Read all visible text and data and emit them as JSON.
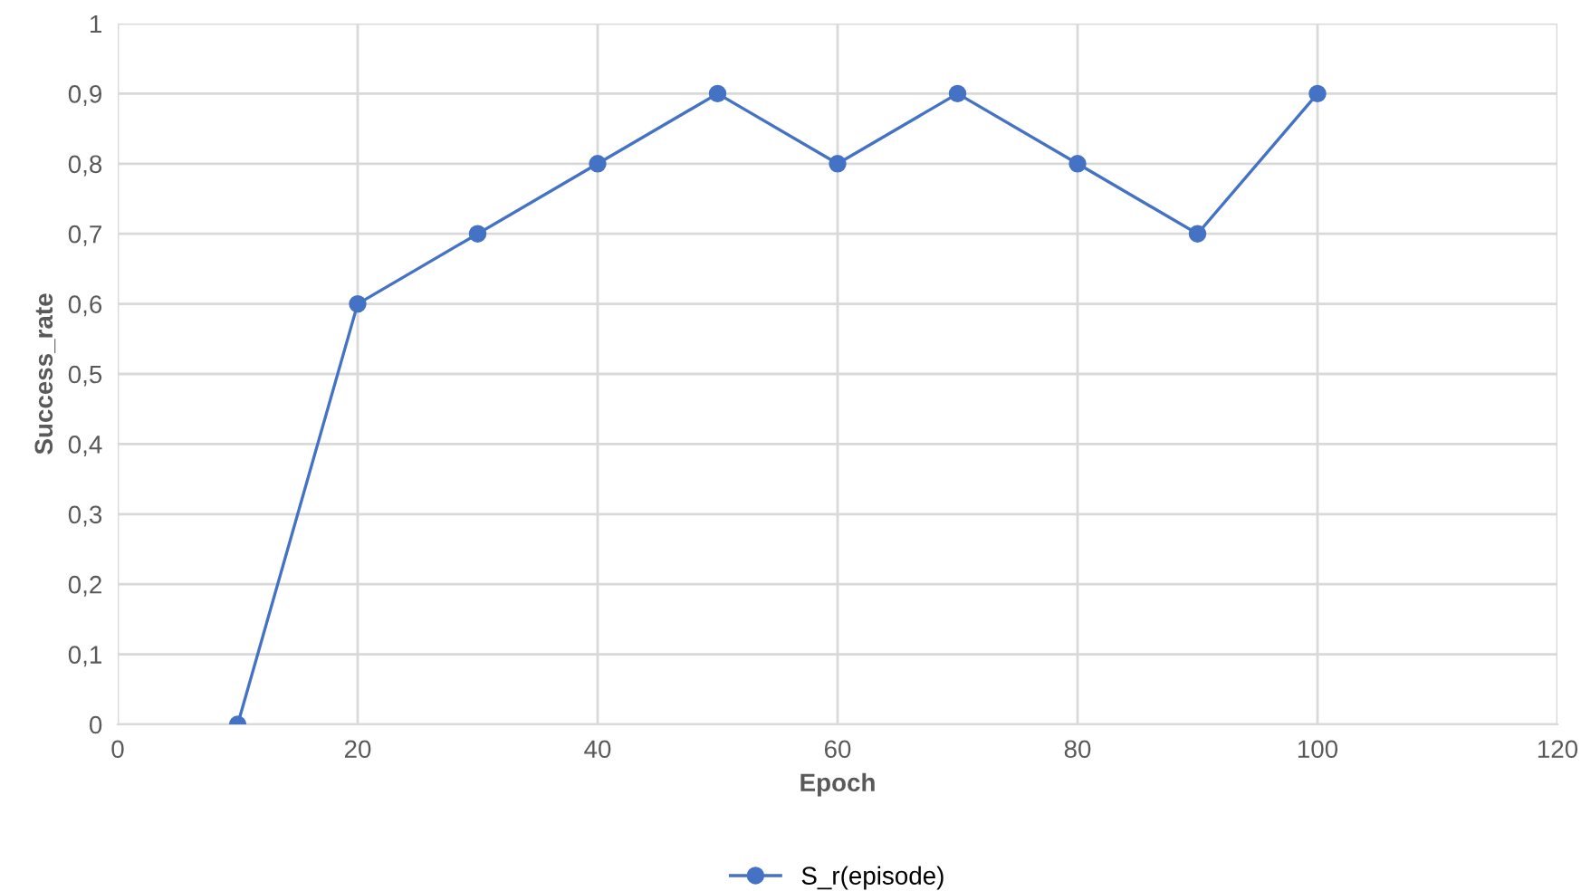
{
  "chart_data": {
    "type": "line",
    "xlabel": "Epoch",
    "ylabel": "Success_rate",
    "x": [
      10,
      20,
      30,
      40,
      50,
      60,
      70,
      80,
      90,
      100
    ],
    "series": [
      {
        "name": "S_r(episode)",
        "color": "#4472c4",
        "values": [
          0,
          0.6,
          0.7,
          0.8,
          0.9,
          0.8,
          0.9,
          0.8,
          0.7,
          0.9
        ]
      }
    ],
    "xlim": [
      0,
      120
    ],
    "xticks": [
      0,
      20,
      40,
      60,
      80,
      100,
      120
    ],
    "ylim": [
      0,
      1
    ],
    "yticks": [
      0,
      {
        "value": 0.1,
        "label": "0,1"
      },
      {
        "value": 0.2,
        "label": "0,2"
      },
      {
        "value": 0.3,
        "label": "0,3"
      },
      {
        "value": 0.4,
        "label": "0,4"
      },
      {
        "value": 0.5,
        "label": "0,5"
      },
      {
        "value": 0.6,
        "label": "0,6"
      },
      {
        "value": 0.7,
        "label": "0,7"
      },
      {
        "value": 0.8,
        "label": "0,8"
      },
      {
        "value": 0.9,
        "label": "0,9"
      },
      1
    ],
    "grid": true,
    "legend": "bottom",
    "marker": "circle",
    "line_style": "solid"
  }
}
